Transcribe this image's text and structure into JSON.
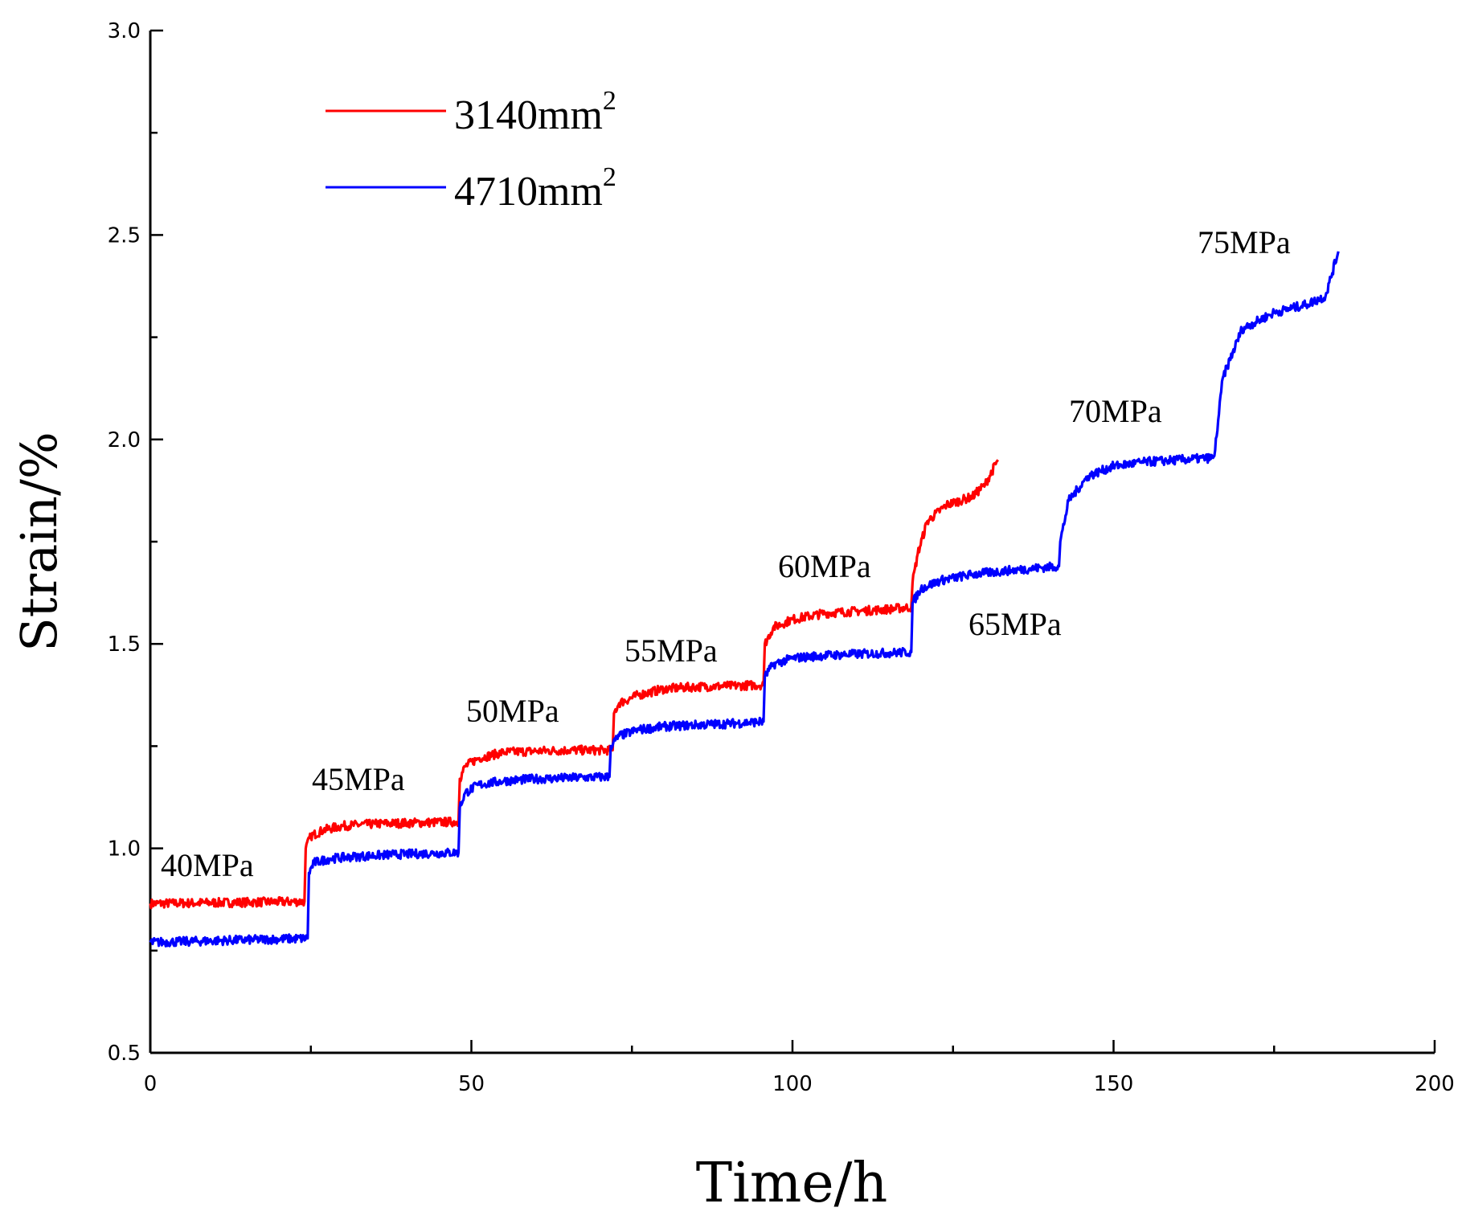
{
  "chart_data": {
    "type": "line",
    "title": "",
    "xlabel": "Time/h",
    "ylabel": "Strain/%",
    "xlim": [
      0,
      200
    ],
    "ylim": [
      0.5,
      3.0
    ],
    "x_ticks": [
      "0",
      "50",
      "100",
      "150",
      "200"
    ],
    "y_ticks": [
      "0.5",
      "1.0",
      "1.5",
      "2.0",
      "2.5",
      "3.0"
    ],
    "legend": {
      "position": "top-left",
      "entries": [
        {
          "base": "3140mm",
          "sup": "2",
          "color": "#ff0000"
        },
        {
          "base": "4710mm",
          "sup": "2",
          "color": "#0000ff"
        }
      ]
    },
    "annotations": [
      "40MPa",
      "45MPa",
      "50MPa",
      "55MPa",
      "60MPa",
      "65MPa",
      "70MPa",
      "75MPa"
    ],
    "series": [
      {
        "name": "3140mm2",
        "color": "#ff0000",
        "x": [
          0,
          24,
          24.2,
          25,
          27,
          30,
          35,
          40,
          48,
          48.2,
          49,
          51,
          55,
          60,
          65,
          72,
          72.2,
          73,
          76,
          80,
          85,
          90,
          95.5,
          95.7,
          97,
          100,
          105,
          110,
          115,
          118.5,
          118.7,
          119.5,
          121,
          124,
          128,
          130,
          132
        ],
        "y": [
          0.865,
          0.87,
          1.0,
          1.03,
          1.045,
          1.055,
          1.06,
          1.062,
          1.065,
          1.17,
          1.2,
          1.22,
          1.235,
          1.238,
          1.24,
          1.24,
          1.33,
          1.355,
          1.375,
          1.39,
          1.395,
          1.397,
          1.4,
          1.5,
          1.54,
          1.56,
          1.575,
          1.58,
          1.585,
          1.59,
          1.65,
          1.72,
          1.8,
          1.84,
          1.86,
          1.89,
          1.95
        ]
      },
      {
        "name": "4710mm2",
        "color": "#0000ff",
        "x": [
          0,
          24.5,
          24.7,
          25.5,
          28,
          32,
          38,
          44,
          48,
          48.2,
          49,
          51,
          55,
          60,
          65,
          71.5,
          71.7,
          73,
          76,
          80,
          85,
          90,
          95.5,
          95.7,
          97,
          100,
          105,
          110,
          115,
          118.5,
          118.7,
          120,
          123,
          128,
          134,
          141.5,
          141.7,
          143,
          146,
          150,
          155,
          160,
          165.5,
          165.7,
          167,
          170,
          175,
          180,
          183,
          185
        ],
        "y": [
          0.77,
          0.78,
          0.94,
          0.965,
          0.975,
          0.98,
          0.985,
          0.988,
          0.99,
          1.1,
          1.135,
          1.155,
          1.165,
          1.17,
          1.172,
          1.175,
          1.25,
          1.275,
          1.29,
          1.298,
          1.302,
          1.305,
          1.31,
          1.42,
          1.45,
          1.465,
          1.472,
          1.475,
          1.478,
          1.48,
          1.6,
          1.635,
          1.655,
          1.67,
          1.68,
          1.69,
          1.75,
          1.85,
          1.91,
          1.935,
          1.945,
          1.95,
          1.955,
          1.96,
          2.15,
          2.27,
          2.31,
          2.33,
          2.35,
          2.46
        ]
      }
    ]
  }
}
